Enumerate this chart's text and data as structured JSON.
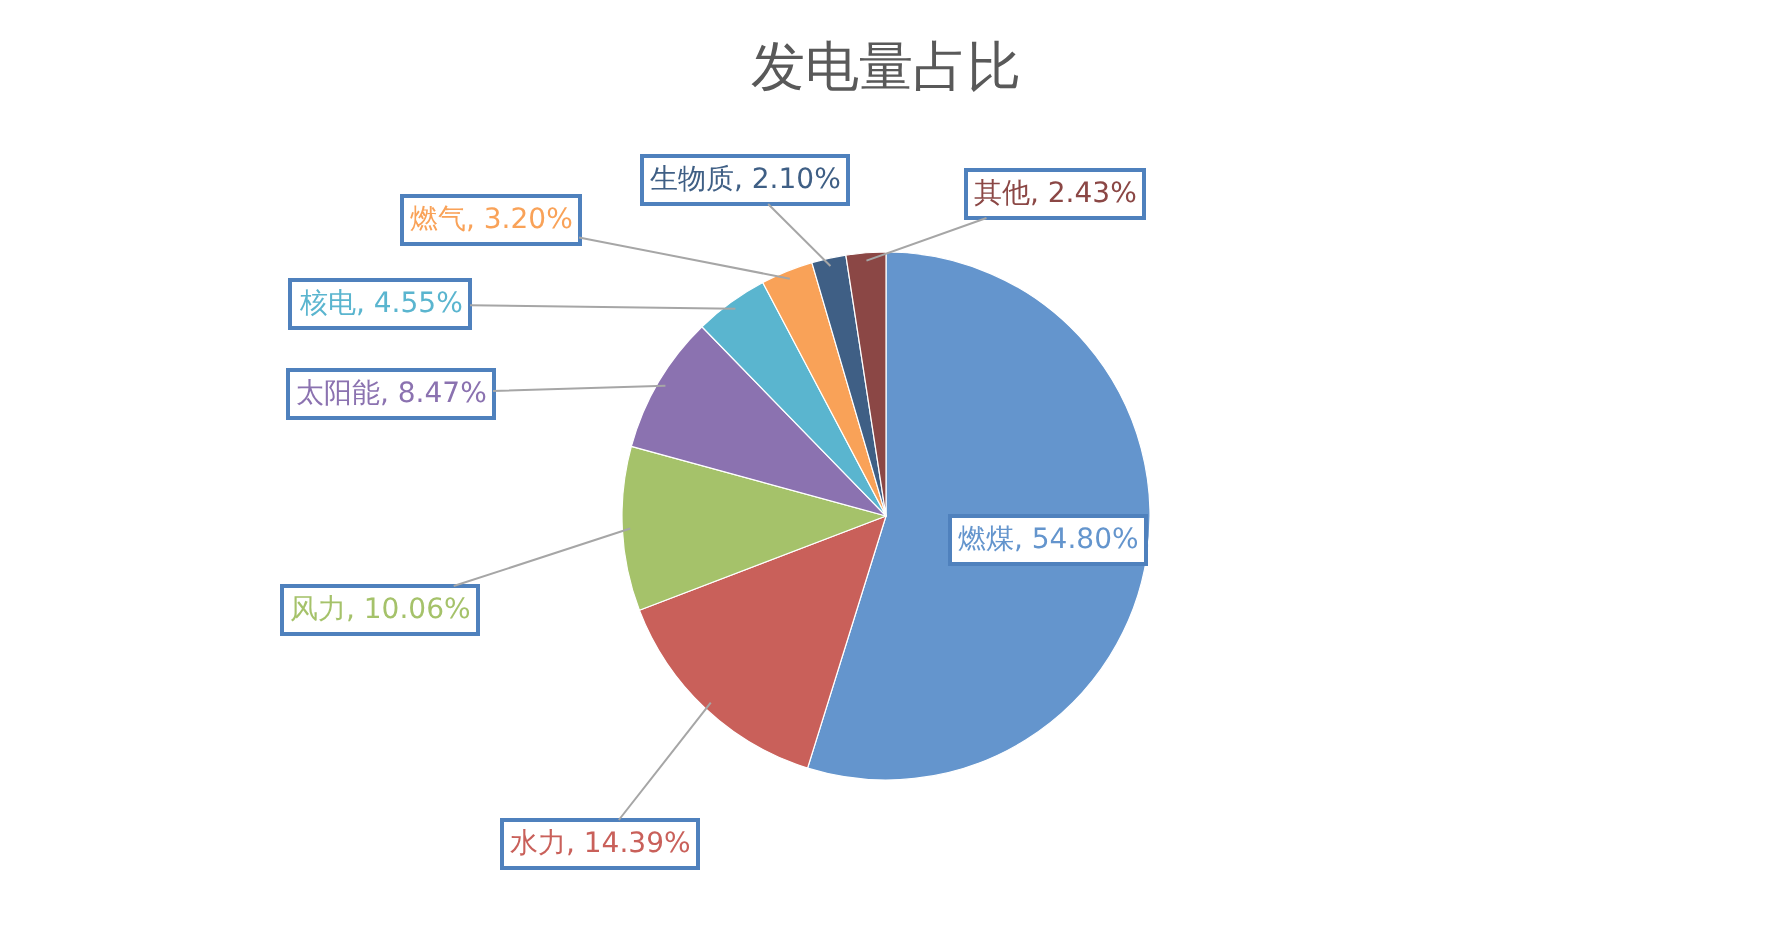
{
  "chart_data": {
    "type": "pie",
    "title": "发电量占比",
    "categories": [
      "燃煤",
      "水力",
      "风力",
      "太阳能",
      "核电",
      "燃气",
      "生物质",
      "其他"
    ],
    "values": [
      54.8,
      14.39,
      10.06,
      8.47,
      4.55,
      3.2,
      2.1,
      2.43
    ],
    "colors": [
      "#6495cd",
      "#c9605a",
      "#a5c26a",
      "#8b72b0",
      "#5ab5cf",
      "#f9a258",
      "#3f5f85",
      "#8b4745"
    ],
    "value_labels": [
      ", 54.80%",
      ", 14.39%",
      ", 10.06%",
      ", 8.47%",
      ", 4.55%",
      ", 3.20%",
      ", 2.10%",
      ", 2.43%"
    ]
  }
}
